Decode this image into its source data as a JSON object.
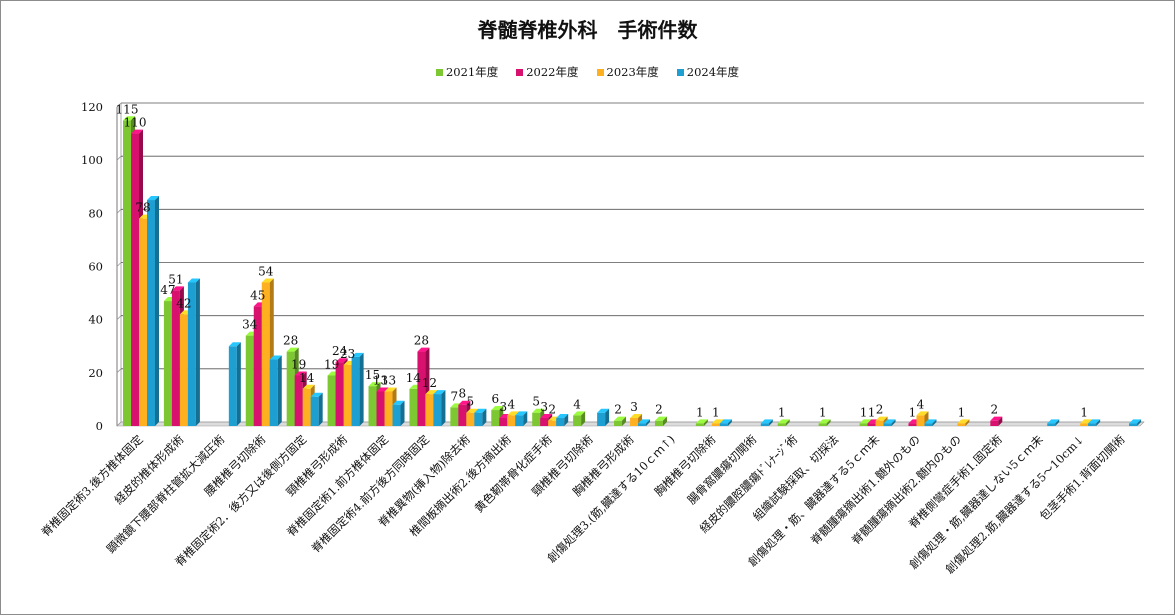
{
  "chart_data": {
    "type": "bar",
    "title": "脊髄脊椎外科　手術件数",
    "ylim": [
      0,
      120
    ],
    "yticks": [
      0,
      20,
      40,
      60,
      80,
      100,
      120
    ],
    "grid": true,
    "legend_position": "top",
    "categories": [
      "脊椎固定術3.後方椎体固定",
      "経皮的椎体形成術",
      "顕微鏡下腰部脊柱管拡大減圧術",
      "腰椎椎弓切除術",
      "脊椎固定術2．後方又は後側方固定",
      "頸椎椎弓形成術",
      "脊椎固定術1.前方椎体固定",
      "脊椎固定術4.前方後方同時固定",
      "脊椎異物(挿入物)除去術",
      "椎間板摘出術2.後方摘出術",
      "黄色靭帯骨化症手術",
      "頸椎椎弓切除術",
      "胸椎椎弓形成術",
      "創傷処理3.(筋,臓達する10ｃｍ↑)",
      "胸椎椎弓切除術",
      "腸骨窩膿瘍切開術",
      "経皮的膿腔膿瘍ﾄﾞﾚﾅｰｼﾞ術",
      "組織試験採取、切採法",
      "創傷処理・筋、臓器達する5ｃｍ未",
      "脊髄腫瘍摘出術1.髄外のもの",
      "脊髄腫瘍摘出術2.髄内のもの",
      "脊椎側彎症手術1.固定術",
      "創傷処理・筋,臓器達しない5ｃｍ未",
      "創傷処理2.筋,臓器達する5～10cm↓",
      "包茎手術1.背面切開術"
    ],
    "series": [
      {
        "name": "2021年度",
        "color": "#7dc832",
        "values": [
          115,
          47,
          0,
          34,
          28,
          19,
          15,
          14,
          7,
          6,
          5,
          4,
          2,
          2,
          1,
          0,
          1,
          1,
          1,
          0,
          0,
          0,
          0,
          0,
          0
        ]
      },
      {
        "name": "2022年度",
        "color": "#d8106e",
        "values": [
          110,
          51,
          0,
          45,
          19,
          24,
          13,
          28,
          8,
          3,
          3,
          0,
          0,
          0,
          0,
          0,
          0,
          0,
          1,
          1,
          0,
          2,
          0,
          0,
          0
        ]
      },
      {
        "name": "2023年度",
        "color": "#ffb020",
        "values": [
          78,
          42,
          0,
          54,
          14,
          23,
          13,
          12,
          5,
          4,
          2,
          0,
          3,
          0,
          1,
          0,
          0,
          0,
          2,
          4,
          1,
          0,
          0,
          1,
          0
        ]
      },
      {
        "name": "2024年度",
        "color": "#1e9fd2",
        "values": [
          85,
          54,
          30,
          25,
          11,
          26,
          8,
          12,
          5,
          4,
          3,
          5,
          1,
          0,
          1,
          1,
          0,
          0,
          1,
          1,
          0,
          0,
          1,
          1,
          1
        ]
      }
    ],
    "data_labels": [
      {
        "category": 0,
        "series": 0,
        "text": "115"
      },
      {
        "category": 0,
        "series": 1,
        "text": "110"
      },
      {
        "category": 0,
        "series": 2,
        "text": "78"
      },
      {
        "category": 1,
        "series": 0,
        "text": "47"
      },
      {
        "category": 1,
        "series": 1,
        "text": "51"
      },
      {
        "category": 1,
        "series": 2,
        "text": "42"
      },
      {
        "category": 3,
        "series": 0,
        "text": "34"
      },
      {
        "category": 3,
        "series": 1,
        "text": "45"
      },
      {
        "category": 3,
        "series": 2,
        "text": "54"
      },
      {
        "category": 4,
        "series": 0,
        "text": "28"
      },
      {
        "category": 4,
        "series": 1,
        "text": "19"
      },
      {
        "category": 4,
        "series": 2,
        "text": "14"
      },
      {
        "category": 5,
        "series": 0,
        "text": "19"
      },
      {
        "category": 5,
        "series": 1,
        "text": "24"
      },
      {
        "category": 5,
        "series": 2,
        "text": "23"
      },
      {
        "category": 6,
        "series": 0,
        "text": "15"
      },
      {
        "category": 6,
        "series": 1,
        "text": "13"
      },
      {
        "category": 6,
        "series": 2,
        "text": "13"
      },
      {
        "category": 7,
        "series": 0,
        "text": "14"
      },
      {
        "category": 7,
        "series": 1,
        "text": "28"
      },
      {
        "category": 7,
        "series": 2,
        "text": "12"
      },
      {
        "category": 8,
        "series": 0,
        "text": "7"
      },
      {
        "category": 8,
        "series": 1,
        "text": "8"
      },
      {
        "category": 8,
        "series": 2,
        "text": "5"
      },
      {
        "category": 9,
        "series": 0,
        "text": "6"
      },
      {
        "category": 9,
        "series": 1,
        "text": "3"
      },
      {
        "category": 9,
        "series": 2,
        "text": "4"
      },
      {
        "category": 10,
        "series": 0,
        "text": "5"
      },
      {
        "category": 10,
        "series": 1,
        "text": "3"
      },
      {
        "category": 10,
        "series": 2,
        "text": "2"
      },
      {
        "category": 11,
        "series": 0,
        "text": "4"
      },
      {
        "category": 12,
        "series": 0,
        "text": "2"
      },
      {
        "category": 12,
        "series": 2,
        "text": "3"
      },
      {
        "category": 13,
        "series": 0,
        "text": "2"
      },
      {
        "category": 14,
        "series": 0,
        "text": "1"
      },
      {
        "category": 14,
        "series": 2,
        "text": "1"
      },
      {
        "category": 16,
        "series": 0,
        "text": "1"
      },
      {
        "category": 17,
        "series": 0,
        "text": "1"
      },
      {
        "category": 18,
        "series": 0,
        "text": "1"
      },
      {
        "category": 18,
        "series": 1,
        "text": "1"
      },
      {
        "category": 18,
        "series": 2,
        "text": "2"
      },
      {
        "category": 19,
        "series": 1,
        "text": "1"
      },
      {
        "category": 19,
        "series": 2,
        "text": "4"
      },
      {
        "category": 20,
        "series": 2,
        "text": "1"
      },
      {
        "category": 21,
        "series": 1,
        "text": "2"
      },
      {
        "category": 23,
        "series": 2,
        "text": "1"
      }
    ]
  }
}
